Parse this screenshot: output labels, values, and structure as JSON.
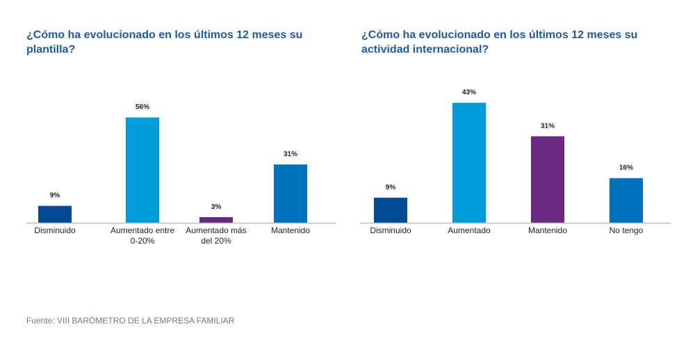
{
  "chart_data": [
    {
      "type": "bar",
      "title": "¿Cómo ha evolucionado en los últimos 12 meses su plantilla?",
      "categories": [
        "Disminuido",
        "Aumentado entre 0-20%",
        "Aumentado más del 20%",
        "Mantenido"
      ],
      "category_lines": [
        [
          "Disminuido"
        ],
        [
          "Aumentado entre",
          "0-20%"
        ],
        [
          "Aumentado más",
          "del 20%"
        ],
        [
          "Mantenido"
        ]
      ],
      "values": [
        9,
        56,
        3,
        31
      ],
      "value_labels": [
        "9%",
        "56%",
        "3%",
        "31%"
      ],
      "colors": [
        "#004b93",
        "#009ddc",
        "#6d2881",
        "#0071bb"
      ],
      "xlabel": "",
      "ylabel": "",
      "ylim": [
        0,
        60
      ],
      "grid": false,
      "legend": "none"
    },
    {
      "type": "bar",
      "title": "¿Cómo ha evolucionado en los últimos 12 meses su actividad internacional?",
      "categories": [
        "Disminuido",
        "Aumentado",
        "Mantenido",
        "No tengo"
      ],
      "category_lines": [
        [
          "Disminuido"
        ],
        [
          "Aumentado"
        ],
        [
          "Mantenido"
        ],
        [
          "No tengo"
        ]
      ],
      "values": [
        9,
        43,
        31,
        16
      ],
      "value_labels": [
        "9%",
        "43%",
        "31%",
        "16%"
      ],
      "colors": [
        "#004b93",
        "#009ddc",
        "#6d2881",
        "#0071bb"
      ],
      "xlabel": "",
      "ylabel": "",
      "ylim": [
        0,
        45
      ],
      "grid": false,
      "legend": "none"
    }
  ],
  "source": "Fuente: VIII BARÓMETRO DE LA EMPRESA FAMILIAR"
}
